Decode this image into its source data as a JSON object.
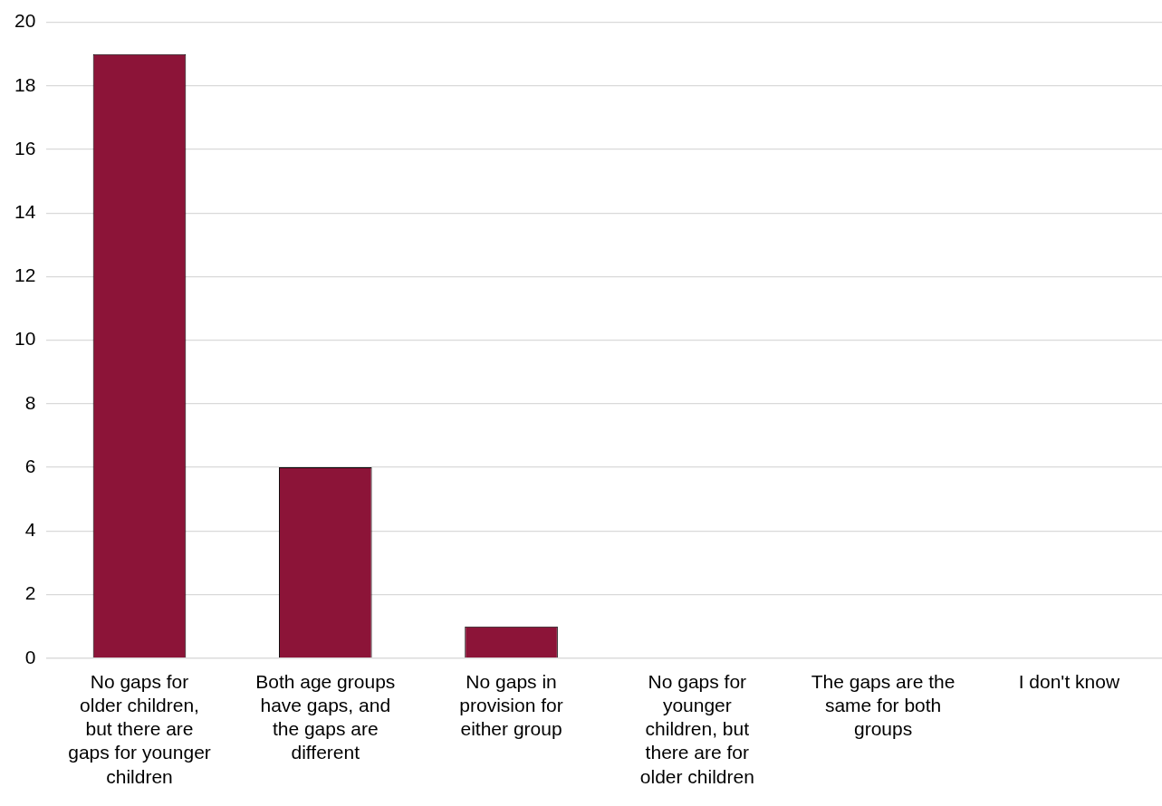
{
  "chart_data": {
    "type": "bar",
    "categories": [
      "No gaps for older children, but there are gaps for younger children",
      "Both age groups have gaps, and the gaps are different",
      "No gaps in provision for either group",
      "No gaps for younger children, but there are for older children",
      "The gaps are the same for both groups",
      "I don't know"
    ],
    "values": [
      19,
      6,
      1,
      0,
      0,
      0
    ],
    "color": "#8c1438",
    "ylim": [
      0,
      20
    ],
    "yticks": [
      0,
      2,
      4,
      6,
      8,
      10,
      12,
      14,
      16,
      18,
      20
    ],
    "grid": "y",
    "legend": false
  }
}
